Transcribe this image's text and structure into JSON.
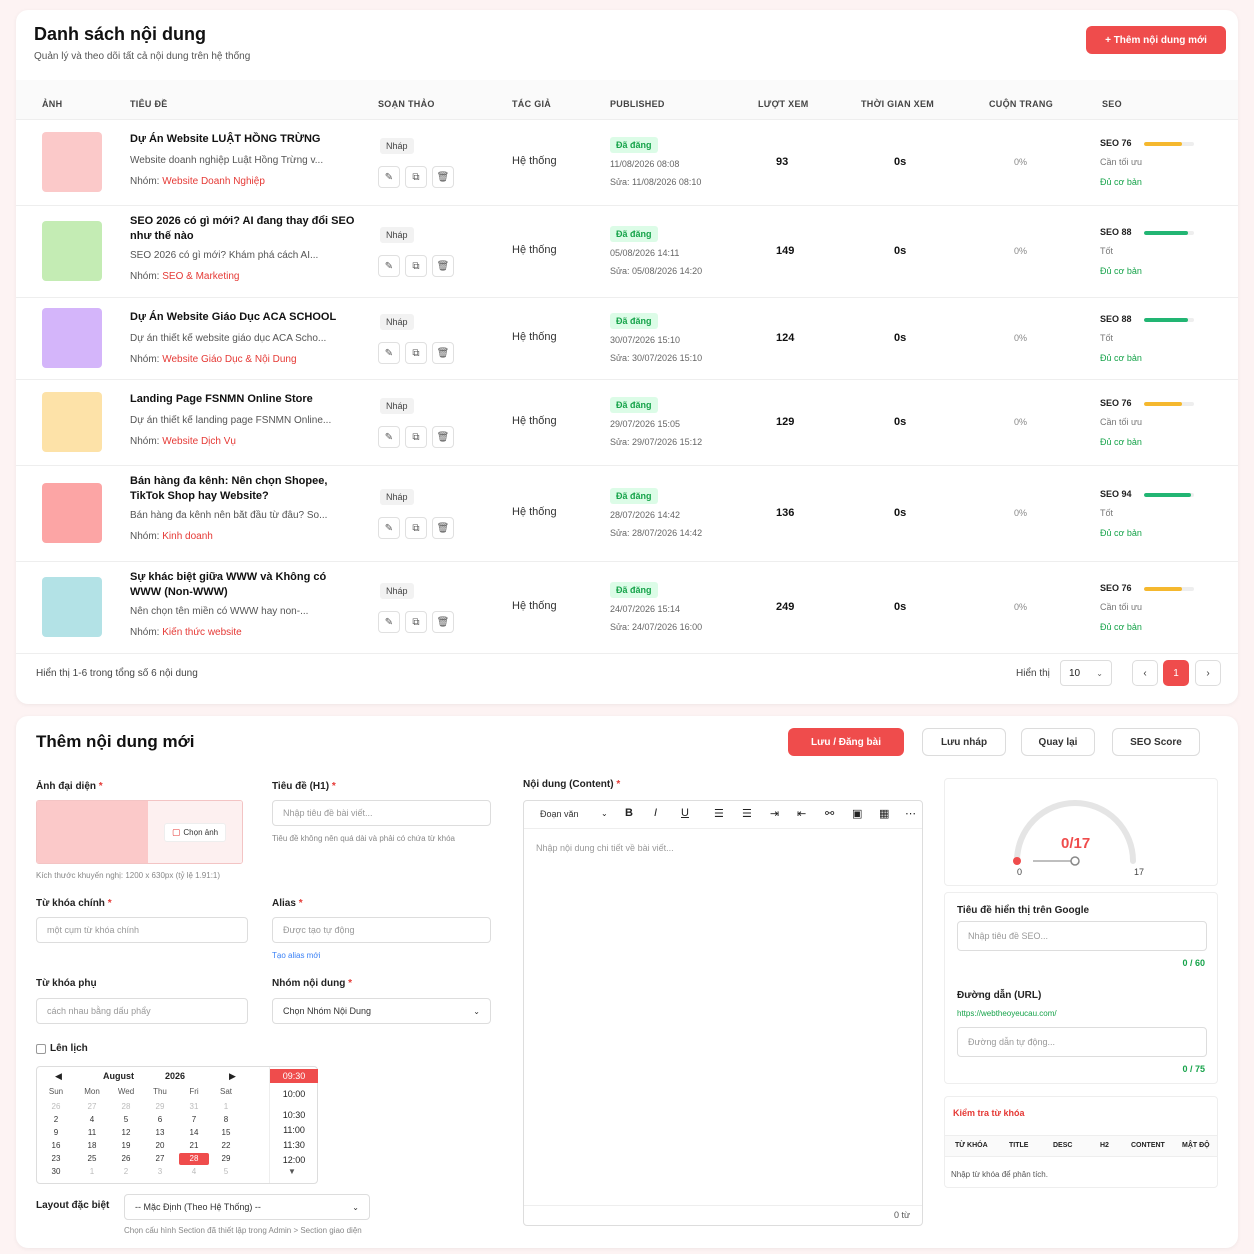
{
  "list": {
    "title": "Danh sách nội dung",
    "subtitle": "Quản lý và theo dõi tất cả nội dung trên hệ thống",
    "add_button": "+ Thêm nội dung mới",
    "columns": [
      "ẢNH",
      "TIÊU ĐỀ",
      "SOẠN THẢO",
      "TÁC GIẢ",
      "PUBLISHED",
      "LƯỢT XEM",
      "THỜI GIAN XEM",
      "CUỘN TRANG",
      "SEO"
    ],
    "group_prefix": "Nhóm:",
    "rows": [
      {
        "title": "Dự Án Website LUẬT HỒNG TRỪNG",
        "desc": "Website doanh nghiệp Luật Hồng Trừng v...",
        "group": "Website Doanh Nghiệp",
        "draft": "Nháp",
        "author": "Hệ thống",
        "status": "Đã đăng",
        "published": "11/08/2026 08:08",
        "edited": "Sửa: 11/08/2026 08:10",
        "views": "93",
        "watch_time": "0s",
        "scroll": "0%",
        "seo": "SEO 76",
        "seo_score": 76,
        "seo_color": "#f5b82e",
        "seo_status": "Cần tối ưu",
        "seo_base": "Đủ cơ bản",
        "thumb_color": "#fbc9c9"
      },
      {
        "title": "SEO 2026 có gì mới? AI đang thay đổi SEO như thế nào",
        "desc": "SEO 2026 có gì mới? Khám phá cách AI...",
        "group": "SEO & Marketing",
        "draft": "Nháp",
        "author": "Hệ thống",
        "status": "Đã đăng",
        "published": "05/08/2026 14:11",
        "edited": "Sửa: 05/08/2026 14:20",
        "views": "149",
        "watch_time": "0s",
        "scroll": "0%",
        "seo": "SEO 88",
        "seo_score": 88,
        "seo_color": "#22b573",
        "seo_status": "Tốt",
        "seo_base": "Đủ cơ bản",
        "thumb_color": "#c4ecb4"
      },
      {
        "title": "Dự Án Website Giáo Dục ACA SCHOOL",
        "desc": "Dự án thiết kế website giáo dục ACA Scho...",
        "group": "Website Giáo Dục & Nội Dung",
        "draft": "Nháp",
        "author": "Hệ thống",
        "status": "Đã đăng",
        "published": "30/07/2026 15:10",
        "edited": "Sửa: 30/07/2026 15:10",
        "views": "124",
        "watch_time": "0s",
        "scroll": "0%",
        "seo": "SEO 88",
        "seo_score": 88,
        "seo_color": "#22b573",
        "seo_status": "Tốt",
        "seo_base": "Đủ cơ bản",
        "thumb_color": "#d4b5fa"
      },
      {
        "title": "Landing Page FSNMN Online Store",
        "desc": "Dự án thiết kế landing page FSNMN Online...",
        "group": "Website Dịch Vụ",
        "draft": "Nháp",
        "author": "Hệ thống",
        "status": "Đã đăng",
        "published": "29/07/2026 15:05",
        "edited": "Sửa: 29/07/2026 15:12",
        "views": "129",
        "watch_time": "0s",
        "scroll": "0%",
        "seo": "SEO 76",
        "seo_score": 76,
        "seo_color": "#f5b82e",
        "seo_status": "Cần tối ưu",
        "seo_base": "Đủ cơ bản",
        "thumb_color": "#fde2a8"
      },
      {
        "title": "Bán hàng đa kênh: Nên chọn Shopee, TikTok Shop hay Website?",
        "desc": "Bán hàng đa kênh nên bắt đầu từ đâu? So...",
        "group": "Kinh doanh",
        "draft": "Nháp",
        "author": "Hệ thống",
        "status": "Đã đăng",
        "published": "28/07/2026 14:42",
        "edited": "Sửa: 28/07/2026 14:42",
        "views": "136",
        "watch_time": "0s",
        "scroll": "0%",
        "seo": "SEO 94",
        "seo_score": 94,
        "seo_color": "#22b573",
        "seo_status": "Tốt",
        "seo_base": "Đủ cơ bản",
        "thumb_color": "#fca5a5"
      },
      {
        "title": "Sự khác biệt giữa WWW và Không có WWW (Non-WWW)",
        "desc": "Nên chọn tên miền có WWW hay non-...",
        "group": "Kiến thức website",
        "draft": "Nháp",
        "author": "Hệ thống",
        "status": "Đã đăng",
        "published": "24/07/2026 15:14",
        "edited": "Sửa: 24/07/2026 16:00",
        "views": "249",
        "watch_time": "0s",
        "scroll": "0%",
        "seo": "SEO 76",
        "seo_score": 76,
        "seo_color": "#f5b82e",
        "seo_status": "Cần tối ưu",
        "seo_base": "Đủ cơ bản",
        "thumb_color": "#b3e2e6"
      }
    ],
    "footer_info": "Hiển thị 1-6 trong tổng số 6 nội dung",
    "page_size_label": "Hiển thị",
    "page_size": "10",
    "current_page": "1"
  },
  "form": {
    "title": "Thêm nội dung mới",
    "buttons": {
      "save": "Lưu / Đăng bài",
      "draft": "Lưu nháp",
      "back": "Quay lại",
      "seo": "SEO Score"
    },
    "image_label": "Ảnh đại diện",
    "choose_image": "Chọn ảnh",
    "image_hint": "Kích thước khuyến nghị: 1200 x 630px (tỷ lệ 1.91:1)",
    "title_label": "Tiêu đề (H1)",
    "title_placeholder": "Nhập tiêu đề bài viết...",
    "title_hint": "Tiêu đề không nên quá dài và phải có chứa từ khóa",
    "keyword_label": "Từ khóa chính",
    "keyword_placeholder": "một cụm từ khóa chính",
    "alias_label": "Alias",
    "alias_placeholder": "Được tạo tự động",
    "alias_link": "Tạo alias mới",
    "sub_keyword_label": "Từ khóa phụ",
    "sub_keyword_placeholder": "cách nhau bằng dấu phẩy",
    "group_label": "Nhóm nội dung",
    "group_value": "Chọn Nhóm Nội Dung",
    "schedule_label": "Lên lịch",
    "calendar": {
      "month": "August",
      "year": "2026",
      "weekdays": [
        "Sun",
        "Mon",
        "Wed",
        "Thu",
        "Fri",
        "Sat"
      ],
      "rows": [
        [
          "26",
          "27",
          "28",
          "29",
          "31",
          "1"
        ],
        [
          "2",
          "4",
          "5",
          "6",
          "7",
          "8"
        ],
        [
          "9",
          "11",
          "12",
          "13",
          "14",
          "15"
        ],
        [
          "16",
          "18",
          "19",
          "20",
          "21",
          "22"
        ],
        [
          "23",
          "25",
          "26",
          "27",
          "28",
          "29"
        ],
        [
          "30",
          "1",
          "2",
          "3",
          "4",
          "5"
        ]
      ],
      "selected_day": "28",
      "times": [
        "09:30",
        "10:00",
        "10:30",
        "11:00",
        "11:30",
        "12:00"
      ],
      "selected_time": "09:30"
    },
    "layout_label": "Layout đặc biệt",
    "layout_value": "-- Mặc Định (Theo Hệ Thống) --",
    "layout_hint": "Chọn cấu hình Section đã thiết lập trong Admin > Section giao diện",
    "content_label": "Nội dung (Content)",
    "paragraph_select": "Đoạn văn",
    "content_placeholder": "Nhập nội dung chi tiết về bài viết...",
    "word_count": "0 từ"
  },
  "seo_panel": {
    "score": "0/17",
    "min": "0",
    "max": "17",
    "score_value": 0,
    "google_title_label": "Tiêu đề hiển thị trên Google",
    "google_title_placeholder": "Nhập tiêu đề SEO...",
    "title_count": "0 / 60",
    "url_label": "Đường dẫn (URL)",
    "url_base": "https://webtheoyeucau.com/",
    "url_placeholder": "Đường dẫn tự động...",
    "url_count": "0 / 75",
    "kw_check_title": "Kiểm tra từ khóa",
    "kw_columns": [
      "TỪ KHÓA",
      "TITLE",
      "DESC",
      "H2",
      "CONTENT",
      "MẬT ĐỘ"
    ],
    "kw_hint": "Nhập từ khóa để phân tích."
  },
  "colors": {
    "accent": "#ef4c4c",
    "success": "#16a34a",
    "warning": "#f5b82e"
  }
}
